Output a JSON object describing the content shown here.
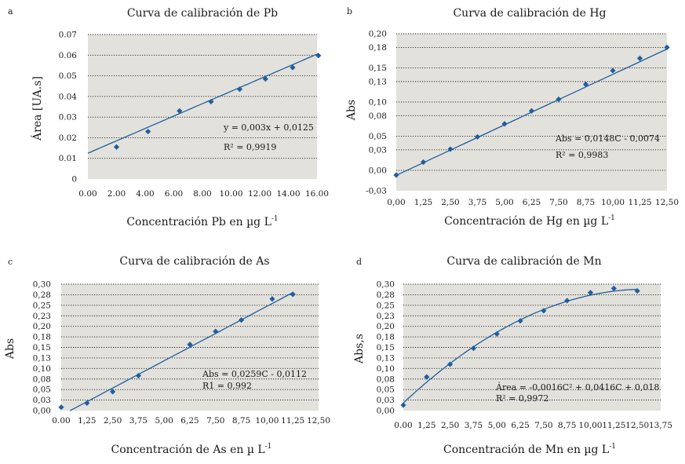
{
  "chart_data": [
    {
      "panel": "a",
      "type": "scatter",
      "title": "Curva de calibración de Pb",
      "xlabel": "Concentración Pb en µg L",
      "xlabel_sup": "-1",
      "ylabel": "Área [UA.s]",
      "xlim": [
        0,
        16
      ],
      "ylim": [
        0,
        0.07
      ],
      "x_ticks": [
        0,
        2,
        4,
        6,
        8,
        10,
        12,
        14,
        16
      ],
      "x_tick_labels": [
        "0.00",
        "2.00",
        "4.00",
        "6.00",
        "8.00",
        "10.00",
        "12.00",
        "14.00",
        "16.00"
      ],
      "y_ticks": [
        0,
        0.01,
        0.02,
        0.03,
        0.04,
        0.05,
        0.06,
        0.07
      ],
      "y_tick_labels": [
        "0",
        "0.01",
        "0.02",
        "0.03",
        "0.04",
        "0.05",
        "0.06",
        "0.07"
      ],
      "grid": true,
      "series": [
        {
          "name": "Pb",
          "x": [
            2.0,
            4.2,
            6.4,
            8.6,
            10.6,
            12.4,
            14.3,
            16.1
          ],
          "y": [
            0.0155,
            0.023,
            0.033,
            0.0375,
            0.0435,
            0.0485,
            0.054,
            0.0598
          ]
        }
      ],
      "trendline": {
        "kind": "linear",
        "slope": 0.003,
        "intercept": 0.0125,
        "x_range": [
          0,
          16.1
        ]
      },
      "annotations": [
        "y = 0,003x + 0,0125",
        "R² = 0,9919"
      ]
    },
    {
      "panel": "b",
      "type": "scatter",
      "title": "Curva de calibración de Hg",
      "xlabel": "Concentración de Hg en µg L",
      "xlabel_sup": "-1",
      "ylabel": "Abs",
      "xlim": [
        0,
        12.5
      ],
      "ylim": [
        -0.03,
        0.2
      ],
      "x_ticks": [
        0,
        1.25,
        2.5,
        3.75,
        5,
        6.25,
        7.5,
        8.75,
        10,
        11.25,
        12.5
      ],
      "x_tick_labels": [
        "0,00",
        "1,25",
        "2,50",
        "3,75",
        "5,00",
        "6,25",
        "7,50",
        "8,75",
        "10,00",
        "11,25",
        "12,50"
      ],
      "y_ticks": [
        -0.03,
        0.0,
        0.03,
        0.05,
        0.08,
        0.1,
        0.13,
        0.15,
        0.18,
        0.2
      ],
      "y_tick_labels": [
        "-0,03",
        "0,00",
        "0,03",
        "0,05",
        "0,08",
        "0,10",
        "0,13",
        "0,15",
        "0,18",
        "0,20"
      ],
      "grid": true,
      "series": [
        {
          "name": "Hg",
          "x": [
            0.0,
            1.25,
            2.5,
            3.75,
            5.0,
            6.25,
            7.5,
            8.75,
            10.0,
            11.25,
            12.5
          ],
          "y": [
            -0.007,
            0.012,
            0.031,
            0.049,
            0.068,
            0.087,
            0.104,
            0.126,
            0.146,
            0.164,
            0.18
          ]
        }
      ],
      "trendline": {
        "kind": "linear",
        "slope": 0.0148,
        "intercept": -0.0074,
        "x_range": [
          0,
          12.5
        ]
      },
      "annotations": [
        "Abs = 0,0148C - 0,0074",
        "R² = 0,9983"
      ]
    },
    {
      "panel": "c",
      "type": "scatter",
      "title": "Curva de calibración de As",
      "xlabel": "Concentración de As en µ L",
      "xlabel_sup": "-1",
      "ylabel": "Abs",
      "xlim": [
        0,
        12.5
      ],
      "ylim": [
        0,
        0.3
      ],
      "x_ticks": [
        0,
        1.25,
        2.5,
        3.75,
        5,
        6.25,
        7.5,
        8.75,
        10,
        11.25,
        12.5
      ],
      "x_tick_labels": [
        "0.00",
        "1,25",
        "2,50",
        "3,75",
        "5,00",
        "6,25",
        "7,50",
        "8,75",
        "10,00",
        "11,25",
        "12,50"
      ],
      "y_ticks": [
        0,
        0.025,
        0.05,
        0.075,
        0.1,
        0.125,
        0.15,
        0.175,
        0.2,
        0.225,
        0.25,
        0.275,
        0.3
      ],
      "y_tick_labels": [
        "0,00",
        "0,03",
        "0,05",
        "0,08",
        "0,10",
        "0,13",
        "0,15",
        "0,18",
        "0,20",
        "0,23",
        "0,25",
        "0,28",
        "0,30"
      ],
      "grid": true,
      "series": [
        {
          "name": "As",
          "x": [
            0.0,
            1.25,
            2.5,
            3.75,
            6.25,
            7.5,
            8.75,
            10.25,
            11.25
          ],
          "y": [
            0.008,
            0.018,
            0.045,
            0.083,
            0.157,
            0.188,
            0.215,
            0.265,
            0.276
          ]
        }
      ],
      "trendline": {
        "kind": "linear",
        "slope": 0.0259,
        "intercept": -0.0112,
        "x_range": [
          0,
          11.25
        ]
      },
      "annotations": [
        "Abs = 0,0259C - 0,0112",
        "R1 = 0,992"
      ]
    },
    {
      "panel": "d",
      "type": "scatter",
      "title": "Curva de calibración de Mn",
      "xlabel": "Concentración de Mn en µg L",
      "xlabel_sup": "-1",
      "ylabel": "Abs,s",
      "xlim": [
        0,
        13.75
      ],
      "ylim": [
        0,
        0.3
      ],
      "x_ticks": [
        0,
        1.25,
        2.5,
        3.75,
        5,
        6.25,
        7.5,
        8.75,
        10,
        11.25,
        12.5,
        13.75
      ],
      "x_tick_labels": [
        "0.00",
        "1,25",
        "2,50",
        "3,75",
        "5,00",
        "6,25",
        "7,50",
        "8,75",
        "10,00",
        "11,25",
        "12,50",
        "13,75"
      ],
      "y_ticks": [
        0,
        0.025,
        0.05,
        0.075,
        0.1,
        0.125,
        0.15,
        0.175,
        0.2,
        0.225,
        0.25,
        0.275,
        0.3
      ],
      "y_tick_labels": [
        "0,00",
        "0,03",
        "0,05",
        "0,08",
        "0,10",
        "0,13",
        "0,15",
        "0,18",
        "0,20",
        "0,23",
        "0,25",
        "0,28",
        "0,30"
      ],
      "grid": true,
      "series": [
        {
          "name": "Mn",
          "x": [
            0.0,
            1.25,
            2.5,
            3.75,
            5.0,
            6.25,
            7.5,
            8.75,
            10.0,
            11.25,
            12.5
          ],
          "y": [
            0.013,
            0.08,
            0.11,
            0.148,
            0.182,
            0.213,
            0.237,
            0.261,
            0.28,
            0.29,
            0.284
          ]
        }
      ],
      "trendline": {
        "kind": "quadratic",
        "a": -0.0016,
        "b": 0.0416,
        "c": 0.018,
        "x_range": [
          0,
          12.5
        ]
      },
      "annotations": [
        "Área = -0,0016C² + 0,0416C + 0,018",
        "R² = 0,9972"
      ]
    }
  ]
}
